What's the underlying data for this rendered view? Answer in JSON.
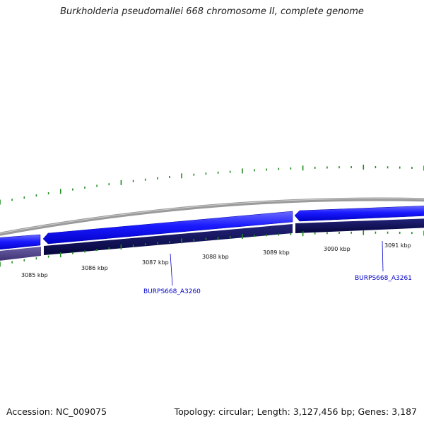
{
  "title": "Burkholderia pseudomallei 668 chromosome II, complete genome",
  "footer": {
    "accession": "Accession: NC_009075",
    "summary": "Topology: circular; Length: 3,127,456 bp; Genes: 3,187"
  },
  "colors": {
    "backbone": "#808080",
    "forward_gene": "#1a1aff",
    "reverse_gene": "#0a0a66",
    "reverse_gene_light": "#4b3f86",
    "gc_ticks": "#1f8a1f",
    "gene_label": "#0000cc"
  },
  "scale": {
    "tick_labels": [
      "3085 kbp",
      "3086 kbp",
      "3087 kbp",
      "3088 kbp",
      "3089 kbp",
      "3090 kbp",
      "3091 kbp"
    ]
  },
  "gene_labels": [
    "BURPS668_A3260",
    "BURPS668_A3261"
  ]
}
